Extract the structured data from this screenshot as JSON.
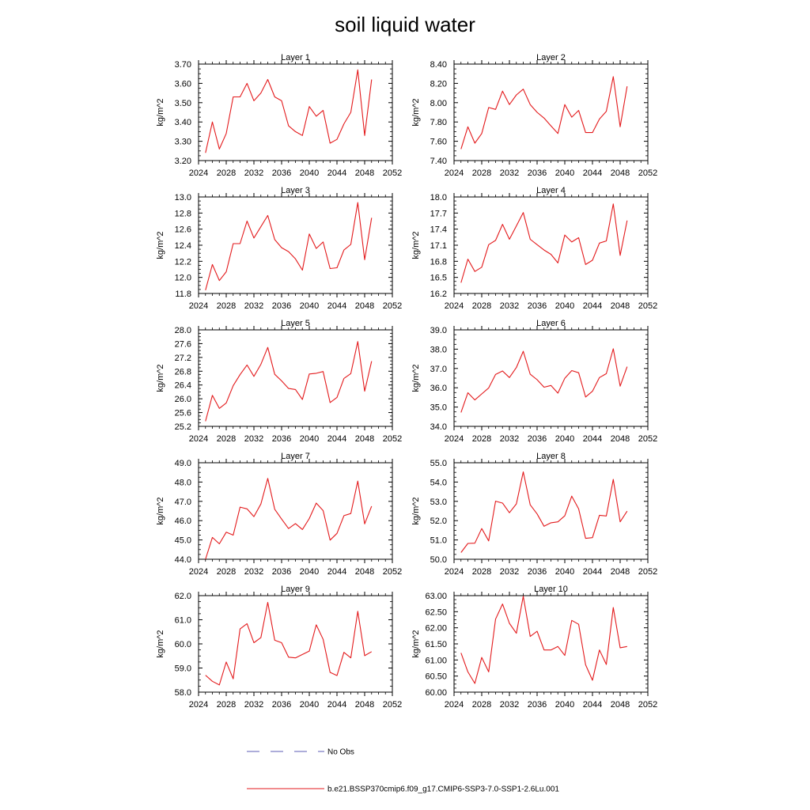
{
  "title": "soil liquid water",
  "colors": {
    "model": "#e31a1c",
    "obs": "#5b5bb5",
    "axis": "#000000"
  },
  "legend": [
    {
      "label": "No Obs",
      "style": "dashed",
      "color": "#5b5bb5"
    },
    {
      "label": "b.e21.BSSP370cmip6.f09_g17.CMIP6-SSP3-7.0-SSP1-2.6Lu.001",
      "style": "solid",
      "color": "#e31a1c"
    }
  ],
  "chart_data": [
    {
      "type": "line",
      "title": "Layer 1",
      "ylabel": "kg/m^2",
      "xlim": [
        2024,
        2052
      ],
      "xticks": [
        2024,
        2028,
        2032,
        2036,
        2040,
        2044,
        2048,
        2052
      ],
      "ylim": [
        3.2,
        3.7
      ],
      "yticks": [
        "3.20",
        "3.30",
        "3.40",
        "3.50",
        "3.60",
        "3.70"
      ],
      "x": [
        2025,
        2026,
        2027,
        2028,
        2029,
        2030,
        2031,
        2032,
        2033,
        2034,
        2035,
        2036,
        2037,
        2038,
        2039,
        2040,
        2041,
        2042,
        2043,
        2044,
        2045,
        2046,
        2047,
        2048,
        2049
      ],
      "values": [
        3.24,
        3.4,
        3.26,
        3.34,
        3.53,
        3.53,
        3.6,
        3.51,
        3.55,
        3.62,
        3.53,
        3.51,
        3.38,
        3.35,
        3.33,
        3.48,
        3.43,
        3.46,
        3.29,
        3.31,
        3.39,
        3.45,
        3.67,
        3.33,
        3.62
      ]
    },
    {
      "type": "line",
      "title": "Layer 2",
      "ylabel": "kg/m^2",
      "xlim": [
        2024,
        2052
      ],
      "xticks": [
        2024,
        2028,
        2032,
        2036,
        2040,
        2044,
        2048,
        2052
      ],
      "ylim": [
        7.4,
        8.4
      ],
      "yticks": [
        "7.40",
        "7.60",
        "7.80",
        "8.00",
        "8.20",
        "8.40"
      ],
      "x": [
        2025,
        2026,
        2027,
        2028,
        2029,
        2030,
        2031,
        2032,
        2033,
        2034,
        2035,
        2036,
        2037,
        2038,
        2039,
        2040,
        2041,
        2042,
        2043,
        2044,
        2045,
        2046,
        2047,
        2048,
        2049
      ],
      "values": [
        7.52,
        7.75,
        7.58,
        7.68,
        7.95,
        7.93,
        8.12,
        7.98,
        8.08,
        8.14,
        7.98,
        7.9,
        7.84,
        7.76,
        7.68,
        7.98,
        7.85,
        7.92,
        7.69,
        7.69,
        7.83,
        7.91,
        8.27,
        7.75,
        8.17
      ]
    },
    {
      "type": "line",
      "title": "Layer 3",
      "ylabel": "kg/m^2",
      "xlim": [
        2024,
        2052
      ],
      "xticks": [
        2024,
        2028,
        2032,
        2036,
        2040,
        2044,
        2048,
        2052
      ],
      "ylim": [
        11.8,
        13.0
      ],
      "yticks": [
        "11.8",
        "12.0",
        "12.2",
        "12.4",
        "12.6",
        "12.8",
        "13.0"
      ],
      "x": [
        2025,
        2026,
        2027,
        2028,
        2029,
        2030,
        2031,
        2032,
        2033,
        2034,
        2035,
        2036,
        2037,
        2038,
        2039,
        2040,
        2041,
        2042,
        2043,
        2044,
        2045,
        2046,
        2047,
        2048,
        2049
      ],
      "values": [
        11.84,
        12.16,
        11.96,
        12.07,
        12.42,
        12.42,
        12.7,
        12.49,
        12.63,
        12.77,
        12.47,
        12.37,
        12.32,
        12.23,
        12.09,
        12.54,
        12.36,
        12.44,
        12.11,
        12.12,
        12.34,
        12.41,
        12.93,
        12.22,
        12.74
      ]
    },
    {
      "type": "line",
      "title": "Layer 4",
      "ylabel": "kg/m^2",
      "xlim": [
        2024,
        2052
      ],
      "xticks": [
        2024,
        2028,
        2032,
        2036,
        2040,
        2044,
        2048,
        2052
      ],
      "ylim": [
        16.2,
        18.0
      ],
      "yticks": [
        "16.2",
        "16.5",
        "16.8",
        "17.1",
        "17.4",
        "17.7",
        "18.0"
      ],
      "x": [
        2025,
        2026,
        2027,
        2028,
        2029,
        2030,
        2031,
        2032,
        2033,
        2034,
        2035,
        2036,
        2037,
        2038,
        2039,
        2040,
        2041,
        2042,
        2043,
        2044,
        2045,
        2046,
        2047,
        2048,
        2049
      ],
      "values": [
        16.4,
        16.84,
        16.61,
        16.69,
        17.11,
        17.19,
        17.49,
        17.21,
        17.46,
        17.71,
        17.21,
        17.11,
        17.01,
        16.93,
        16.77,
        17.29,
        17.16,
        17.24,
        16.74,
        16.82,
        17.14,
        17.18,
        17.87,
        16.91,
        17.56
      ]
    },
    {
      "type": "line",
      "title": "Layer 5",
      "ylabel": "kg/m^2",
      "xlim": [
        2024,
        2052
      ],
      "xticks": [
        2024,
        2028,
        2032,
        2036,
        2040,
        2044,
        2048,
        2052
      ],
      "ylim": [
        25.2,
        28.0
      ],
      "yticks": [
        "25.2",
        "25.6",
        "26.0",
        "26.4",
        "26.8",
        "27.2",
        "27.6",
        "28.0"
      ],
      "x": [
        2025,
        2026,
        2027,
        2028,
        2029,
        2030,
        2031,
        2032,
        2033,
        2034,
        2035,
        2036,
        2037,
        2038,
        2039,
        2040,
        2041,
        2042,
        2043,
        2044,
        2045,
        2046,
        2047,
        2048,
        2049
      ],
      "values": [
        25.35,
        26.1,
        25.72,
        25.88,
        26.38,
        26.7,
        26.98,
        26.65,
        27.0,
        27.49,
        26.71,
        26.52,
        26.3,
        26.27,
        25.98,
        26.72,
        26.74,
        26.79,
        25.89,
        26.04,
        26.59,
        26.73,
        27.66,
        26.22,
        27.09
      ]
    },
    {
      "type": "line",
      "title": "Layer 6",
      "ylabel": "kg/m^2",
      "xlim": [
        2024,
        2052
      ],
      "xticks": [
        2024,
        2028,
        2032,
        2036,
        2040,
        2044,
        2048,
        2052
      ],
      "ylim": [
        34.0,
        39.0
      ],
      "yticks": [
        "34.0",
        "35.0",
        "36.0",
        "37.0",
        "38.0",
        "39.0"
      ],
      "x": [
        2025,
        2026,
        2027,
        2028,
        2029,
        2030,
        2031,
        2032,
        2033,
        2034,
        2035,
        2036,
        2037,
        2038,
        2039,
        2040,
        2041,
        2042,
        2043,
        2044,
        2045,
        2046,
        2047,
        2048,
        2049
      ],
      "values": [
        34.72,
        35.74,
        35.37,
        35.68,
        35.99,
        36.69,
        36.87,
        36.53,
        37.05,
        37.89,
        36.7,
        36.42,
        36.03,
        36.12,
        35.72,
        36.49,
        36.89,
        36.78,
        35.52,
        35.82,
        36.53,
        36.73,
        38.02,
        36.08,
        37.09
      ]
    },
    {
      "type": "line",
      "title": "Layer 7",
      "ylabel": "kg/m^2",
      "xlim": [
        2024,
        2052
      ],
      "xticks": [
        2024,
        2028,
        2032,
        2036,
        2040,
        2044,
        2048,
        2052
      ],
      "ylim": [
        44.0,
        49.0
      ],
      "yticks": [
        "44.0",
        "45.0",
        "46.0",
        "47.0",
        "48.0",
        "49.0"
      ],
      "x": [
        2025,
        2026,
        2027,
        2028,
        2029,
        2030,
        2031,
        2032,
        2033,
        2034,
        2035,
        2036,
        2037,
        2038,
        2039,
        2040,
        2041,
        2042,
        2043,
        2044,
        2045,
        2046,
        2047,
        2048,
        2049
      ],
      "values": [
        44.0,
        45.13,
        44.8,
        45.4,
        45.25,
        46.7,
        46.61,
        46.21,
        46.86,
        48.19,
        46.59,
        46.08,
        45.59,
        45.85,
        45.54,
        46.11,
        46.91,
        46.52,
        44.99,
        45.34,
        46.26,
        46.37,
        48.05,
        45.83,
        46.75
      ]
    },
    {
      "type": "line",
      "title": "Layer 8",
      "ylabel": "kg/m^2",
      "xlim": [
        2024,
        2052
      ],
      "xticks": [
        2024,
        2028,
        2032,
        2036,
        2040,
        2044,
        2048,
        2052
      ],
      "ylim": [
        50.0,
        55.0
      ],
      "yticks": [
        "50.0",
        "51.0",
        "52.0",
        "53.0",
        "54.0",
        "55.0"
      ],
      "x": [
        2025,
        2026,
        2027,
        2028,
        2029,
        2030,
        2031,
        2032,
        2033,
        2034,
        2035,
        2036,
        2037,
        2038,
        2039,
        2040,
        2041,
        2042,
        2043,
        2044,
        2045,
        2046,
        2047,
        2048,
        2049
      ],
      "values": [
        50.35,
        50.82,
        50.83,
        51.59,
        50.95,
        53.01,
        52.91,
        52.41,
        52.87,
        54.53,
        52.82,
        52.35,
        51.71,
        51.89,
        51.94,
        52.25,
        53.27,
        52.61,
        51.08,
        51.12,
        52.28,
        52.24,
        54.14,
        51.94,
        52.49
      ]
    },
    {
      "type": "line",
      "title": "Layer 9",
      "ylabel": "kg/m^2",
      "xlim": [
        2024,
        2052
      ],
      "xticks": [
        2024,
        2028,
        2032,
        2036,
        2040,
        2044,
        2048,
        2052
      ],
      "ylim": [
        58.0,
        62.0
      ],
      "yticks": [
        "58.0",
        "59.0",
        "60.0",
        "61.0",
        "62.0"
      ],
      "x": [
        2025,
        2026,
        2027,
        2028,
        2029,
        2030,
        2031,
        2032,
        2033,
        2034,
        2035,
        2036,
        2037,
        2038,
        2039,
        2040,
        2041,
        2042,
        2043,
        2044,
        2045,
        2046,
        2047,
        2048,
        2049
      ],
      "values": [
        58.7,
        58.45,
        58.3,
        59.25,
        58.55,
        60.62,
        60.84,
        60.05,
        60.26,
        61.72,
        60.15,
        60.05,
        59.45,
        59.42,
        59.56,
        59.7,
        60.79,
        60.19,
        58.82,
        58.69,
        59.65,
        59.42,
        61.35,
        59.51,
        59.68
      ]
    },
    {
      "type": "line",
      "title": "Layer 10",
      "ylabel": "kg/m^2",
      "xlim": [
        2024,
        2052
      ],
      "xticks": [
        2024,
        2028,
        2032,
        2036,
        2040,
        2044,
        2048,
        2052
      ],
      "ylim": [
        60.0,
        63.0
      ],
      "yticks": [
        "60.00",
        "60.50",
        "61.00",
        "61.50",
        "62.00",
        "62.50",
        "63.00"
      ],
      "x": [
        2025,
        2026,
        2027,
        2028,
        2029,
        2030,
        2031,
        2032,
        2033,
        2034,
        2035,
        2036,
        2037,
        2038,
        2039,
        2040,
        2041,
        2042,
        2043,
        2044,
        2045,
        2046,
        2047,
        2048,
        2049
      ],
      "values": [
        61.22,
        60.63,
        60.27,
        61.08,
        60.63,
        62.27,
        62.74,
        62.14,
        61.83,
        62.98,
        61.73,
        61.89,
        61.31,
        61.31,
        61.42,
        61.14,
        62.23,
        62.11,
        60.85,
        60.37,
        61.31,
        60.86,
        62.63,
        61.38,
        61.42
      ]
    }
  ]
}
